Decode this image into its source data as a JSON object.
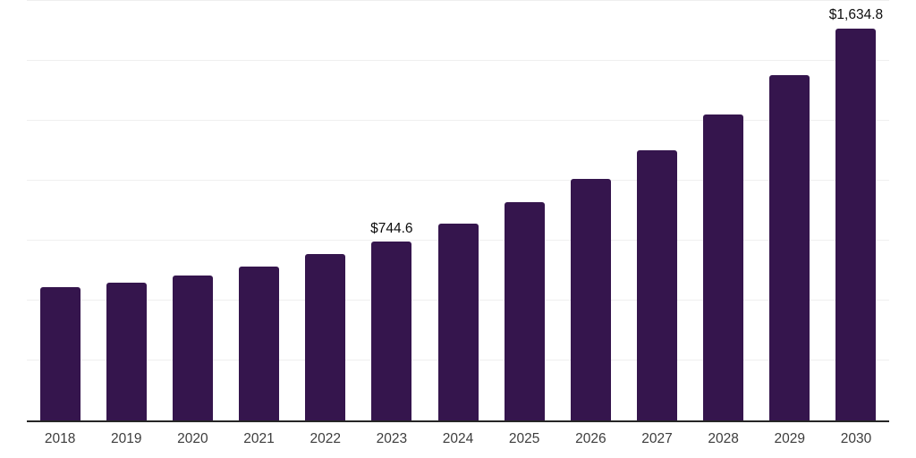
{
  "chart_data": {
    "type": "bar",
    "categories": [
      "2018",
      "2019",
      "2020",
      "2021",
      "2022",
      "2023",
      "2024",
      "2025",
      "2026",
      "2027",
      "2028",
      "2029",
      "2030"
    ],
    "values": [
      555,
      574,
      604,
      641,
      693,
      744.6,
      822,
      911,
      1006,
      1128,
      1275,
      1442,
      1634.8
    ],
    "value_labels": [
      "",
      "",
      "",
      "",
      "",
      "$744.6",
      "",
      "",
      "",
      "",
      "",
      "",
      "$1,634.8"
    ],
    "title": "",
    "xlabel": "",
    "ylabel": "",
    "ylim": [
      0,
      1750
    ],
    "gridline_values": [
      250,
      500,
      750,
      1000,
      1250,
      1500,
      1750
    ],
    "grid": true,
    "legend": false,
    "colors": {
      "bar": "#35154d",
      "gridline": "#efefef",
      "axis": "#262626",
      "tick_label": "#3d3d3d",
      "value_label": "#0d0d0d",
      "background": "#ffffff"
    }
  }
}
